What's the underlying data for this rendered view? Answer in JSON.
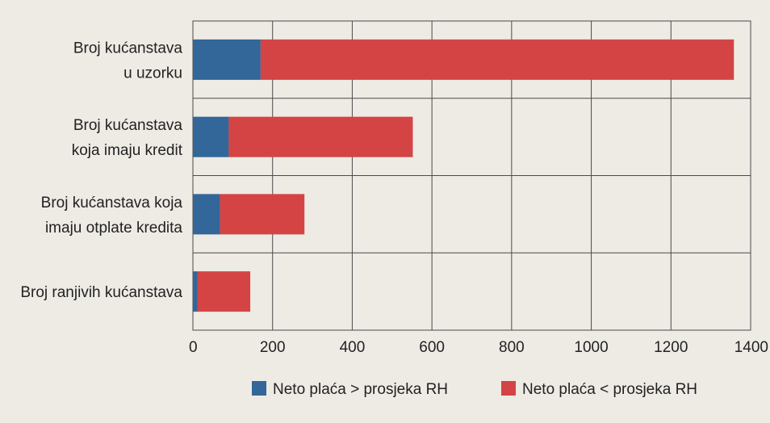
{
  "chart_data": {
    "type": "bar",
    "orientation": "horizontal",
    "stacked": true,
    "categories": [
      [
        "Broj kućanstava",
        "u uzorku"
      ],
      [
        "Broj kućanstava",
        "koja imaju kredit"
      ],
      [
        "Broj kućanstava koja",
        "imaju otplate kredita"
      ],
      [
        "Broj ranjivih kućanstava"
      ]
    ],
    "series": [
      {
        "name": "Neto plaća > prosjeka RH",
        "color": "#336699",
        "values": [
          170,
          90,
          68,
          12
        ]
      },
      {
        "name": "Neto plaća < prosjeka RH",
        "color": "#d44444",
        "values": [
          1188,
          462,
          212,
          132
        ]
      }
    ],
    "xlim": [
      0,
      1400
    ],
    "xticks": [
      0,
      200,
      400,
      600,
      800,
      1000,
      1200,
      1400
    ],
    "xlabel": "",
    "ylabel": "",
    "title": "",
    "grid": true,
    "legend_position": "bottom"
  }
}
